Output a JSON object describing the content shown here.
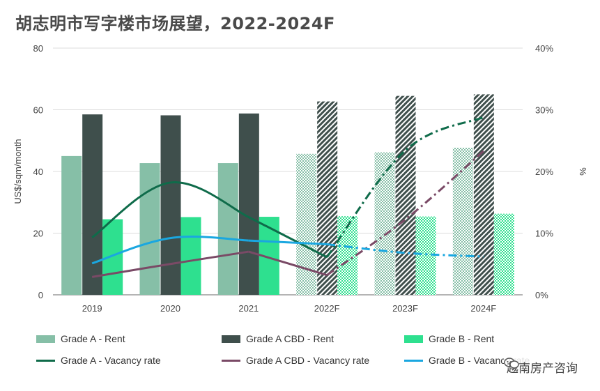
{
  "title": "胡志明市写字楼市场展望，2022-2024F",
  "watermark": "越南房产咨询",
  "chart_data": {
    "type": "bar",
    "categories": [
      "2019",
      "2020",
      "2021",
      "2022F",
      "2023F",
      "2024F"
    ],
    "forecast_from_index": 3,
    "ylabel": "US$/sqm/month",
    "y2label": "%",
    "ylim": [
      0,
      80
    ],
    "y2lim": [
      0,
      40
    ],
    "yticks": [
      "0",
      "20",
      "40",
      "60",
      "80"
    ],
    "y2ticks": [
      "0%",
      "10%",
      "20%",
      "30%",
      "40%"
    ],
    "grid": true,
    "legend_position": "bottom",
    "bar_series": [
      {
        "name": "Grade A - Rent",
        "color": "#86bfa7",
        "values": [
          45,
          42.7,
          42.7,
          45.7,
          46.2,
          47.7
        ]
      },
      {
        "name": "Grade A CBD - Rent",
        "color": "#3f4f4c",
        "values": [
          58.5,
          58.2,
          58.8,
          62.7,
          64.5,
          65
        ]
      },
      {
        "name": "Grade B - Rent",
        "color": "#2ee08f",
        "values": [
          24.5,
          25.2,
          25.3,
          25.5,
          25.4,
          26.3
        ]
      }
    ],
    "line_series": [
      {
        "name": "Grade A - Vacancy rate",
        "color": "#0f6b4a",
        "values": [
          9.3,
          18.2,
          12.6,
          6.1,
          23.4,
          28.8
        ]
      },
      {
        "name": "Grade A CBD - Vacancy rate",
        "color": "#7a4a66",
        "values": [
          2.9,
          5.0,
          7.0,
          3.2,
          12.2,
          23.3
        ]
      },
      {
        "name": "Grade B - Vacancy rate",
        "color": "#1aa7e0",
        "values": [
          5.1,
          9.2,
          8.8,
          8.2,
          6.8,
          6.2
        ]
      }
    ]
  },
  "legend_items": [
    {
      "label": "Grade A - Rent",
      "kind": "bar",
      "color": "#86bfa7"
    },
    {
      "label": "Grade A CBD - Rent",
      "kind": "bar",
      "color": "#3f4f4c"
    },
    {
      "label": "Grade B - Rent",
      "kind": "bar",
      "color": "#2ee08f"
    },
    {
      "label": "Grade A - Vacancy rate",
      "kind": "line",
      "color": "#0f6b4a"
    },
    {
      "label": "Grade A CBD - Vacancy rate",
      "kind": "line",
      "color": "#7a4a66"
    },
    {
      "label": "Grade B - Vacancy rate",
      "kind": "line",
      "color": "#1aa7e0"
    }
  ]
}
